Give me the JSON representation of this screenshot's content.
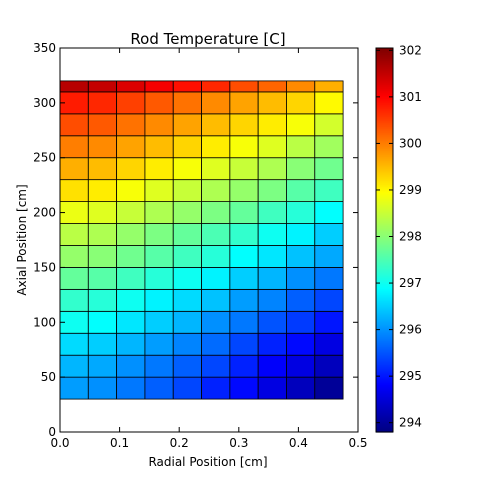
{
  "chart_data": {
    "type": "heatmap",
    "title": "Rod Temperature [C]",
    "xlabel": "Radial Position [cm]",
    "ylabel": "Axial Position [cm]",
    "xlim": [
      0.0,
      0.5
    ],
    "ylim": [
      0,
      350
    ],
    "xticks": [
      "0.0",
      "0.1",
      "0.2",
      "0.3",
      "0.4",
      "0.5"
    ],
    "yticks": [
      "0",
      "50",
      "100",
      "150",
      "200",
      "250",
      "300",
      "350"
    ],
    "colorbar": {
      "vmin": 293.8,
      "vmax": 302.05,
      "ticks": [
        "294",
        "295",
        "296",
        "297",
        "298",
        "299",
        "300",
        "301",
        "302"
      ],
      "colormap": "jet"
    },
    "x_edges": [
      0.0,
      0.0475,
      0.095,
      0.1425,
      0.19,
      0.2375,
      0.285,
      0.3325,
      0.38,
      0.4275,
      0.475
    ],
    "y_edges": [
      30,
      50,
      70,
      90,
      110,
      130,
      150,
      170,
      190,
      210,
      230,
      250,
      270,
      290,
      310,
      320
    ],
    "row_order": "bottom-to-top",
    "values": [
      [
        296.1,
        296.0,
        295.8,
        295.6,
        295.4,
        295.1,
        294.9,
        294.6,
        294.3,
        294.0
      ],
      [
        296.3,
        296.2,
        296.0,
        295.8,
        295.6,
        295.4,
        295.1,
        294.8,
        294.6,
        294.3
      ],
      [
        296.6,
        296.5,
        296.3,
        296.1,
        295.9,
        295.7,
        295.4,
        295.1,
        294.9,
        294.6
      ],
      [
        297.0,
        296.9,
        296.7,
        296.5,
        296.3,
        296.0,
        295.8,
        295.5,
        295.3,
        295.0
      ],
      [
        297.3,
        297.2,
        297.0,
        296.8,
        296.6,
        296.4,
        296.1,
        295.9,
        295.6,
        295.4
      ],
      [
        297.7,
        297.6,
        297.4,
        297.2,
        297.0,
        296.8,
        296.5,
        296.3,
        296.0,
        295.8
      ],
      [
        298.1,
        298.0,
        297.8,
        297.6,
        297.4,
        297.2,
        296.9,
        296.7,
        296.4,
        296.2
      ],
      [
        298.4,
        298.3,
        298.1,
        297.9,
        297.7,
        297.5,
        297.3,
        297.0,
        296.8,
        296.5
      ],
      [
        298.8,
        298.7,
        298.5,
        298.3,
        298.1,
        297.9,
        297.7,
        297.4,
        297.2,
        296.9
      ],
      [
        299.2,
        299.1,
        298.9,
        298.7,
        298.5,
        298.3,
        298.1,
        297.9,
        297.6,
        297.4
      ],
      [
        299.6,
        299.5,
        299.3,
        299.1,
        298.9,
        298.7,
        298.5,
        298.3,
        298.0,
        297.8
      ],
      [
        300.0,
        299.9,
        299.7,
        299.5,
        299.3,
        299.1,
        298.9,
        298.7,
        298.4,
        298.2
      ],
      [
        300.4,
        300.3,
        300.1,
        299.9,
        299.7,
        299.5,
        299.3,
        299.1,
        298.9,
        298.6
      ],
      [
        300.8,
        300.7,
        300.5,
        300.3,
        300.1,
        299.9,
        299.7,
        299.5,
        299.3,
        299.0
      ],
      [
        301.6,
        301.5,
        301.3,
        301.1,
        300.9,
        300.7,
        300.4,
        300.2,
        299.9,
        299.6
      ]
    ]
  }
}
